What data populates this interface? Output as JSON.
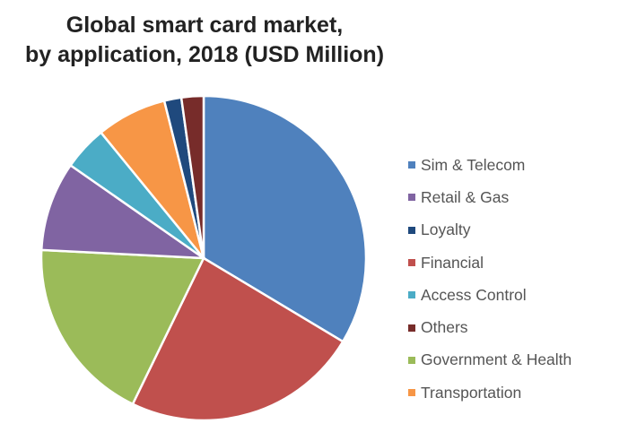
{
  "chart_data": {
    "type": "pie",
    "title_line1": "Global smart card market,",
    "title_line2": "by application, 2018 (USD Million)",
    "slices": [
      {
        "label": "Sim & Telecom",
        "value": 33.6,
        "color": "#4f81bd"
      },
      {
        "label": "Financial",
        "value": 23.6,
        "color": "#c0504d"
      },
      {
        "label": "Government & Health",
        "value": 18.6,
        "color": "#9bbb59"
      },
      {
        "label": "Retail & Gas",
        "value": 8.9,
        "color": "#8064a2"
      },
      {
        "label": "Access Control",
        "value": 4.4,
        "color": "#4bacc6"
      },
      {
        "label": "Transportation",
        "value": 7.0,
        "color": "#f79646"
      },
      {
        "label": "Loyalty",
        "value": 1.7,
        "color": "#1f497d"
      },
      {
        "label": "Others",
        "value": 2.2,
        "color": "#772c2a"
      }
    ],
    "legend_order": [
      "Sim & Telecom",
      "Retail & Gas",
      "Loyalty",
      "Financial",
      "Access Control",
      "Others",
      "Government & Health",
      "Transportation"
    ],
    "legend_position": "right"
  }
}
